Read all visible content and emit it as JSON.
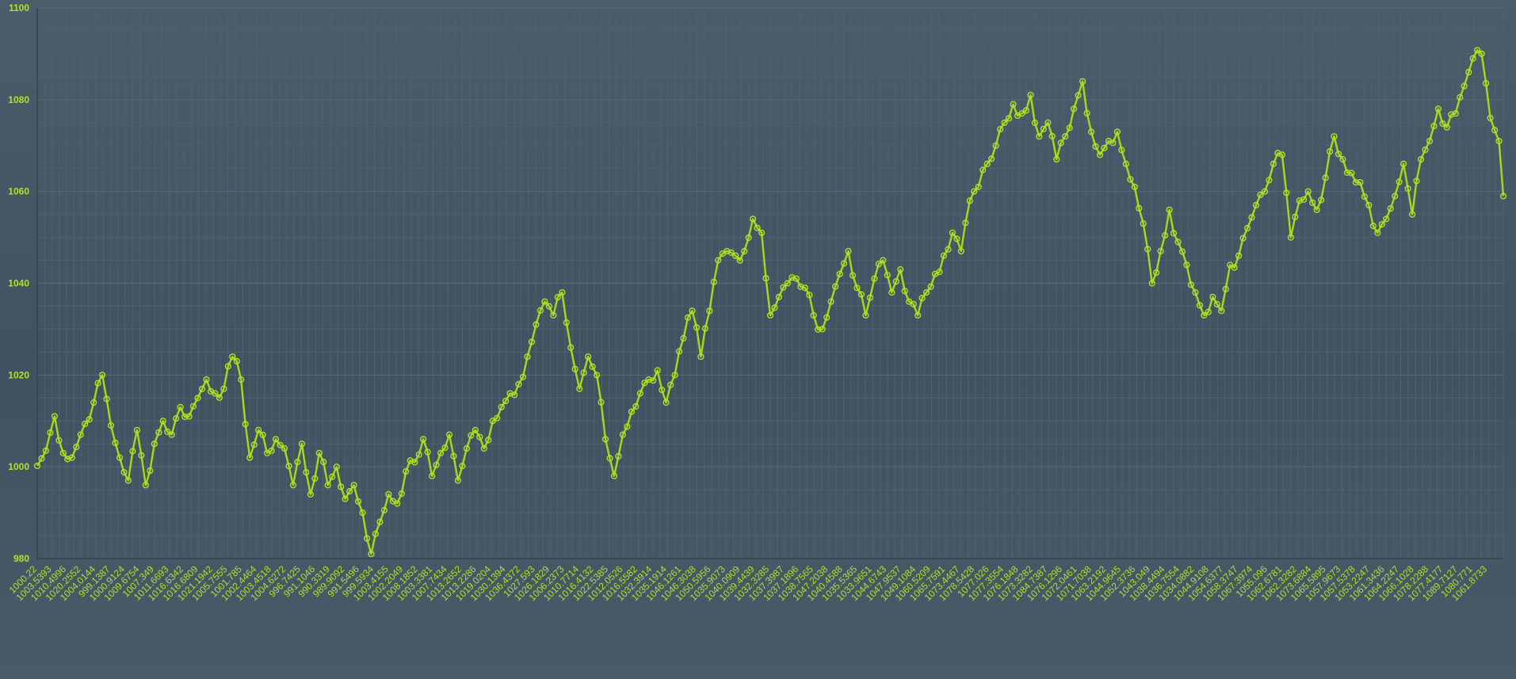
{
  "colors": {
    "background": "#465a68",
    "grid": "#56697a",
    "grid_minor": "#4e6170",
    "line": "#a8d81a",
    "marker": "#b4e02a",
    "label": "#b4e02a"
  },
  "chart_data": {
    "type": "line",
    "title": "",
    "xlabel": "",
    "ylabel": "",
    "ylim": [
      980,
      1100
    ],
    "yticks": [
      980,
      1000,
      1020,
      1040,
      1060,
      1080,
      1100
    ],
    "grid": true,
    "legend": "none",
    "markers": "circle",
    "x_tick_labels": [
      "1000.22",
      "1003.5393",
      "1010.4996",
      "1020.2552",
      "1004.0144",
      "999.1387",
      "1000.9124",
      "1009.6754",
      "1007.349",
      "1011.6693",
      "1016.6342",
      "1016.6809",
      "1021.1942",
      "1005.7555",
      "1001.785",
      "1002.4464",
      "1003.4518",
      "1004.6272",
      "996.7425",
      "991.1046",
      "990.3319",
      "989.9092",
      "991.5496",
      "999.5934",
      "1003.4155",
      "1002.2049",
      "1008.1852",
      "1003.3381",
      "1007.7434",
      "1013.2652",
      "1013.2286",
      "1019.0204",
      "1030.1394",
      "1036.4372",
      "1027.593",
      "1026.1829",
      "1006.2373",
      "1010.7714",
      "1016.4132",
      "1022.5385",
      "1012.0526",
      "1016.5582",
      "1032.3914",
      "1035.1914",
      "1046.1261",
      "1046.3038",
      "1050.5956",
      "1035.9073",
      "1040.0909",
      "1039.4439",
      "1032.3285",
      "1037.3987",
      "1037.1896",
      "1038.7565",
      "1047.2038",
      "1040.4588",
      "1035.5365",
      "1033.9651",
      "1044.6743",
      "1047.9537",
      "1049.1084",
      "1060.5209",
      "1065.7591",
      "1073.4467",
      "1078.5428",
      "1077.026",
      "1077.3554",
      "1076.1848",
      "1073.3282",
      "1084.7387",
      "1076.1296",
      "1072.0461",
      "1071.7038",
      "1063.2192",
      "1044.9645",
      "1052.3736",
      "1043.049",
      "1038.4494",
      "1036.7554",
      "1034.0882",
      "1044.9108",
      "1054.6377",
      "1058.3747",
      "1067.3974",
      "1055.096",
      "1062.6781",
      "1062.3282",
      "1073.6884",
      "1065.5895",
      "1057.9673",
      "1057.5378",
      "1053.2247",
      "1061.3436",
      "1064.2247",
      "1066.1028",
      "1078.2288",
      "1077.4177",
      "1089.7127",
      "1080.771",
      "1061.8733"
    ],
    "anchors": [
      [
        0,
        1000.2
      ],
      [
        2,
        1003.5
      ],
      [
        4,
        1011
      ],
      [
        6,
        1003
      ],
      [
        8,
        1002
      ],
      [
        10,
        1007
      ],
      [
        13,
        1014
      ],
      [
        15,
        1020
      ],
      [
        17,
        1009
      ],
      [
        19,
        1002
      ],
      [
        21,
        997
      ],
      [
        23,
        1008
      ],
      [
        25,
        996
      ],
      [
        27,
        1005
      ],
      [
        29,
        1010
      ],
      [
        31,
        1007
      ],
      [
        33,
        1013
      ],
      [
        35,
        1011
      ],
      [
        37,
        1015
      ],
      [
        39,
        1019
      ],
      [
        41,
        1016
      ],
      [
        43,
        1017
      ],
      [
        45,
        1024
      ],
      [
        47,
        1019
      ],
      [
        49,
        1002
      ],
      [
        51,
        1008
      ],
      [
        53,
        1003
      ],
      [
        55,
        1006
      ],
      [
        57,
        1004
      ],
      [
        59,
        996
      ],
      [
        61,
        1005
      ],
      [
        63,
        994
      ],
      [
        65,
        1003
      ],
      [
        67,
        996
      ],
      [
        69,
        1000
      ],
      [
        71,
        993
      ],
      [
        73,
        996
      ],
      [
        75,
        990
      ],
      [
        77,
        981
      ],
      [
        79,
        988
      ],
      [
        81,
        994
      ],
      [
        83,
        992
      ],
      [
        85,
        999
      ],
      [
        87,
        1001
      ],
      [
        89,
        1006
      ],
      [
        91,
        998
      ],
      [
        93,
        1003
      ],
      [
        95,
        1007
      ],
      [
        97,
        997
      ],
      [
        99,
        1004
      ],
      [
        101,
        1008
      ],
      [
        103,
        1004
      ],
      [
        105,
        1010
      ],
      [
        107,
        1013
      ],
      [
        109,
        1016
      ],
      [
        111,
        1018
      ],
      [
        113,
        1024
      ],
      [
        115,
        1031
      ],
      [
        117,
        1036
      ],
      [
        119,
        1033
      ],
      [
        121,
        1038
      ],
      [
        123,
        1026
      ],
      [
        125,
        1017
      ],
      [
        127,
        1024
      ],
      [
        129,
        1020
      ],
      [
        131,
        1006
      ],
      [
        133,
        998
      ],
      [
        135,
        1007
      ],
      [
        137,
        1012
      ],
      [
        139,
        1016
      ],
      [
        141,
        1019
      ],
      [
        143,
        1021
      ],
      [
        145,
        1014
      ],
      [
        147,
        1020
      ],
      [
        149,
        1028
      ],
      [
        151,
        1034
      ],
      [
        153,
        1024
      ],
      [
        155,
        1034
      ],
      [
        157,
        1045
      ],
      [
        159,
        1047
      ],
      [
        161,
        1046
      ],
      [
        163,
        1047
      ],
      [
        165,
        1054
      ],
      [
        167,
        1051
      ],
      [
        169,
        1033
      ],
      [
        171,
        1037
      ],
      [
        173,
        1040
      ],
      [
        175,
        1041
      ],
      [
        177,
        1039
      ],
      [
        179,
        1033
      ],
      [
        181,
        1030
      ],
      [
        183,
        1036
      ],
      [
        185,
        1042
      ],
      [
        187,
        1047
      ],
      [
        189,
        1039
      ],
      [
        191,
        1033
      ],
      [
        193,
        1041
      ],
      [
        195,
        1045
      ],
      [
        197,
        1038
      ],
      [
        199,
        1043
      ],
      [
        201,
        1036
      ],
      [
        203,
        1033
      ],
      [
        205,
        1038
      ],
      [
        207,
        1042
      ],
      [
        209,
        1046
      ],
      [
        211,
        1051
      ],
      [
        213,
        1047
      ],
      [
        215,
        1058
      ],
      [
        217,
        1061
      ],
      [
        219,
        1066
      ],
      [
        221,
        1070
      ],
      [
        223,
        1075
      ],
      [
        225,
        1079
      ],
      [
        227,
        1077
      ],
      [
        229,
        1081
      ],
      [
        231,
        1072
      ],
      [
        233,
        1075
      ],
      [
        235,
        1067
      ],
      [
        237,
        1072
      ],
      [
        239,
        1078
      ],
      [
        241,
        1084
      ],
      [
        243,
        1073
      ],
      [
        245,
        1068
      ],
      [
        247,
        1071
      ],
      [
        249,
        1073
      ],
      [
        251,
        1066
      ],
      [
        253,
        1061
      ],
      [
        255,
        1053
      ],
      [
        257,
        1040
      ],
      [
        259,
        1047
      ],
      [
        261,
        1056
      ],
      [
        263,
        1049
      ],
      [
        265,
        1044
      ],
      [
        267,
        1038
      ],
      [
        269,
        1033
      ],
      [
        271,
        1037
      ],
      [
        273,
        1034
      ],
      [
        275,
        1044
      ],
      [
        277,
        1046
      ],
      [
        279,
        1052
      ],
      [
        281,
        1057
      ],
      [
        283,
        1060
      ],
      [
        285,
        1066
      ],
      [
        287,
        1068
      ],
      [
        289,
        1050
      ],
      [
        291,
        1058
      ],
      [
        293,
        1060
      ],
      [
        295,
        1056
      ],
      [
        297,
        1063
      ],
      [
        299,
        1072
      ],
      [
        301,
        1067
      ],
      [
        303,
        1064
      ],
      [
        305,
        1062
      ],
      [
        307,
        1057
      ],
      [
        309,
        1051
      ],
      [
        311,
        1054
      ],
      [
        313,
        1059
      ],
      [
        315,
        1066
      ],
      [
        317,
        1055
      ],
      [
        319,
        1067
      ],
      [
        321,
        1071
      ],
      [
        323,
        1078
      ],
      [
        325,
        1074
      ],
      [
        327,
        1077
      ],
      [
        329,
        1083
      ],
      [
        331,
        1089
      ],
      [
        333,
        1090
      ],
      [
        335,
        1076
      ],
      [
        337,
        1071
      ],
      [
        338,
        1059
      ]
    ],
    "n_points": 339
  }
}
